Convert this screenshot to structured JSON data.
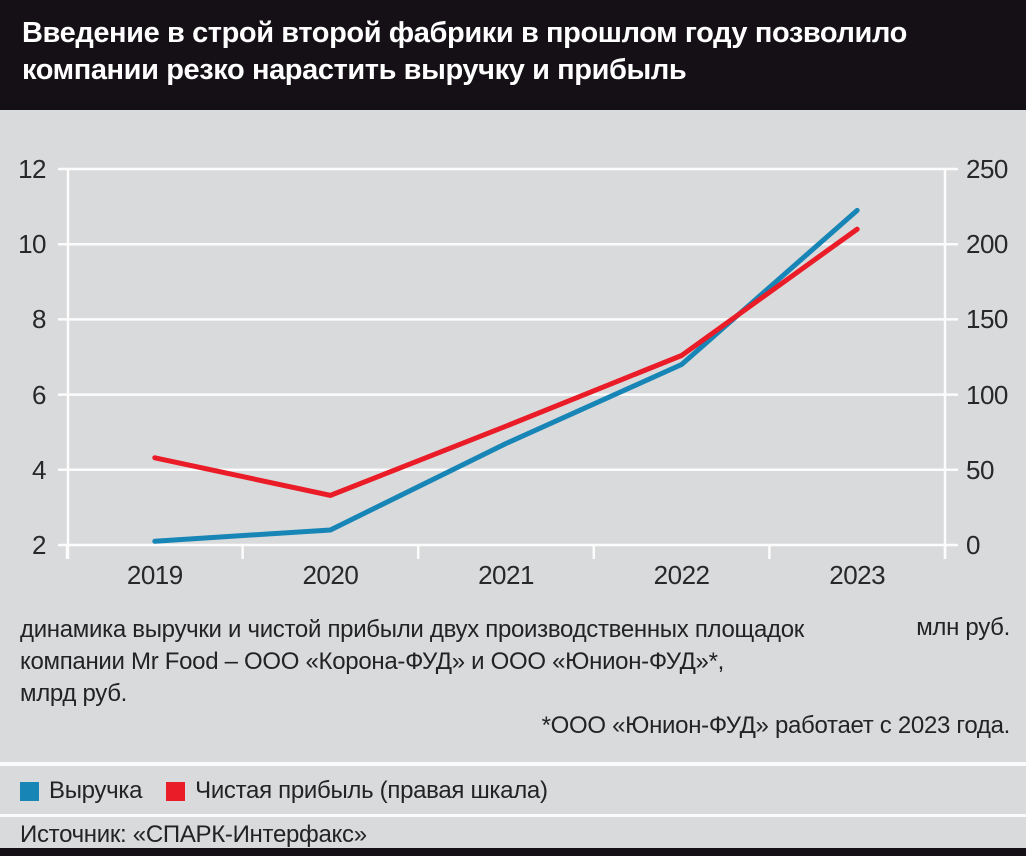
{
  "header": {
    "title": "Введение в строй второй фабрики в прошлом году позволило компании резко нарастить выручку и прибыль"
  },
  "chart_data": {
    "type": "line",
    "x": [
      "2019",
      "2020",
      "2021",
      "2022",
      "2023"
    ],
    "series": [
      {
        "name": "Выручка",
        "axis": "left",
        "unit": "млрд руб.",
        "color": "#1785b6",
        "values": [
          2.1,
          2.4,
          4.7,
          6.8,
          10.9
        ]
      },
      {
        "name": "Чистая прибыль (правая шкала)",
        "axis": "right",
        "unit": "млн руб.",
        "color": "#ea1c27",
        "values": [
          58,
          33,
          79,
          126,
          210
        ]
      }
    ],
    "left_axis": {
      "range": [
        2,
        12
      ],
      "ticks": [
        12,
        10,
        8,
        6,
        4,
        2
      ],
      "unit": "млрд руб."
    },
    "right_axis": {
      "range": [
        0,
        250
      ],
      "ticks": [
        250,
        200,
        150,
        100,
        50,
        0
      ],
      "unit": "млн руб."
    },
    "grid": true,
    "legend_position": "bottom"
  },
  "caption": {
    "lines": [
      "динамика выручки и чистой прибыли двух производственных площадок",
      "компании Mr Food – ООО «Корона-ФУД» и ООО «Юнион-ФУД»*,",
      "млрд руб."
    ],
    "right_unit": "млн руб.",
    "footnote": "*ООО «Юнион-ФУД» работает с 2023 года."
  },
  "legend": {
    "items": [
      {
        "label": "Выручка",
        "color": "#1785b6"
      },
      {
        "label": "Чистая прибыль (правая шкала)",
        "color": "#ea1c27"
      }
    ]
  },
  "source": {
    "text": "Источник: «СПАРК-Интерфакс»"
  }
}
